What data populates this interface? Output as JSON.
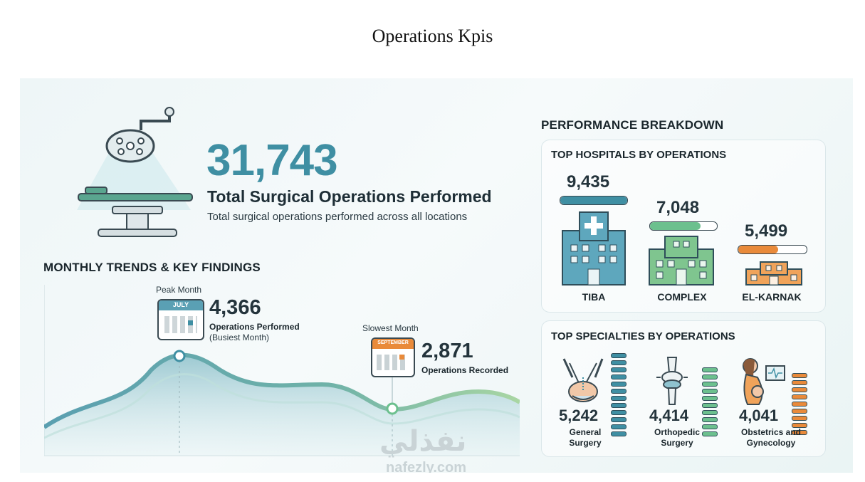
{
  "page_title": "Operations Kpis",
  "hero": {
    "total": "31,743",
    "title": "Total Surgical Operations Performed",
    "subtitle": "Total surgical operations performed across all locations"
  },
  "trends": {
    "section_title": "MONTHLY TRENDS & KEY FINDINGS",
    "peak": {
      "label": "Peak Month",
      "month": "JULY",
      "value": "4,366",
      "desc": "Operations Performed",
      "note": "(Busiest Month)"
    },
    "slowest": {
      "label": "Slowest Month",
      "month": "SEPTEMBER",
      "value": "2,871",
      "desc": "Operations Recorded"
    }
  },
  "breakdown": {
    "section_title": "PERFORMANCE BREAKDOWN",
    "hospitals": {
      "title": "TOP HOSPITALS BY OPERATIONS",
      "items": [
        {
          "name": "TIBA",
          "value": "9,435",
          "fill": 1.0,
          "color": "#3f8fa3"
        },
        {
          "name": "COMPLEX",
          "value": "7,048",
          "fill": 0.75,
          "color": "#6cc08e"
        },
        {
          "name": "EL-KARNAK",
          "value": "5,499",
          "fill": 0.58,
          "color": "#e98a3a"
        }
      ]
    },
    "specialties": {
      "title": "TOP SPECIALTIES BY OPERATIONS",
      "items": [
        {
          "name_line1": "General",
          "name_line2": "Surgery",
          "value": "5,242",
          "color": "#3f8fa3"
        },
        {
          "name_line1": "Orthopedic",
          "name_line2": "Surgery",
          "value": "4,414",
          "color": "#6cc08e"
        },
        {
          "name_line1": "Obstetrics and",
          "name_line2": "Gynecology",
          "value": "4,041",
          "color": "#e98a3a"
        }
      ]
    }
  },
  "watermark": {
    "arabic": "نفذلي",
    "latin": "nafezly.com"
  }
}
